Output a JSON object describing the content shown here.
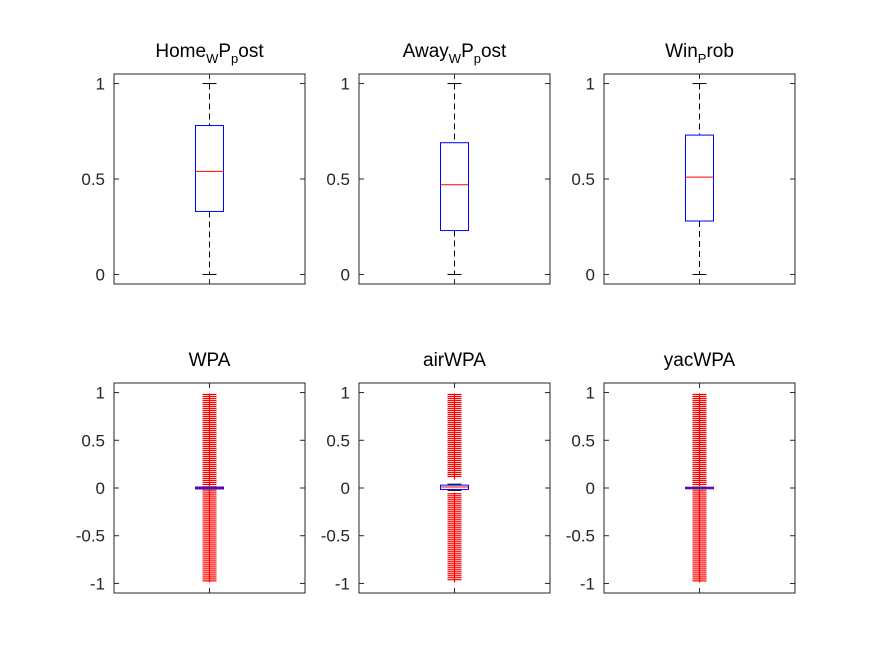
{
  "chart_data": [
    {
      "type": "box",
      "title_parts": [
        {
          "text": "Home",
          "sub": false
        },
        {
          "text": "W",
          "sub": true
        },
        {
          "text": "P",
          "sub": false
        },
        {
          "text": "p",
          "sub": true
        },
        {
          "text": "ost",
          "sub": false
        }
      ],
      "ylim": [
        -0.05,
        1.05
      ],
      "yticks": [
        0,
        0.5,
        1
      ],
      "ytick_labels": [
        "0",
        "0.5",
        "1"
      ],
      "box": {
        "min": 0,
        "q1": 0.33,
        "median": 0.54,
        "q3": 0.78,
        "max": 1
      },
      "outliers_low": [],
      "outliers_high": []
    },
    {
      "type": "box",
      "title_parts": [
        {
          "text": "Away",
          "sub": false
        },
        {
          "text": "W",
          "sub": true
        },
        {
          "text": "P",
          "sub": false
        },
        {
          "text": "p",
          "sub": true
        },
        {
          "text": "ost",
          "sub": false
        }
      ],
      "ylim": [
        -0.05,
        1.05
      ],
      "yticks": [
        0,
        0.5,
        1
      ],
      "ytick_labels": [
        "0",
        "0.5",
        "1"
      ],
      "box": {
        "min": 0,
        "q1": 0.23,
        "median": 0.47,
        "q3": 0.69,
        "max": 1
      },
      "outliers_low": [],
      "outliers_high": []
    },
    {
      "type": "box",
      "title_parts": [
        {
          "text": "Win",
          "sub": false
        },
        {
          "text": "P",
          "sub": true
        },
        {
          "text": "rob",
          "sub": false
        }
      ],
      "ylim": [
        -0.05,
        1.05
      ],
      "yticks": [
        0,
        0.5,
        1
      ],
      "ytick_labels": [
        "0",
        "0.5",
        "1"
      ],
      "box": {
        "min": 0,
        "q1": 0.28,
        "median": 0.51,
        "q3": 0.73,
        "max": 1
      },
      "outliers_low": [],
      "outliers_high": []
    },
    {
      "type": "box",
      "title_parts": [
        {
          "text": "WPA",
          "sub": false
        }
      ],
      "ylim": [
        -1.1,
        1.1
      ],
      "yticks": [
        -1,
        -0.5,
        0,
        0.5,
        1
      ],
      "ytick_labels": [
        "-1",
        "-0.5",
        "0",
        "0.5",
        "1"
      ],
      "box": {
        "min": -0.012,
        "q1": -0.01,
        "median": 0,
        "q3": 0.01,
        "max": 0.012
      },
      "outliers_low": [
        [
          -0.98,
          -0.03
        ]
      ],
      "outliers_high": [
        [
          0.03,
          0.98
        ]
      ]
    },
    {
      "type": "box",
      "title_parts": [
        {
          "text": "airWPA",
          "sub": false
        }
      ],
      "ylim": [
        -1.1,
        1.1
      ],
      "yticks": [
        -1,
        -0.5,
        0,
        0.5,
        1
      ],
      "ytick_labels": [
        "-1",
        "-0.5",
        "0",
        "0.5",
        "1"
      ],
      "box": {
        "min": -0.025,
        "q1": -0.015,
        "median": 0.01,
        "q3": 0.03,
        "max": 0.04
      },
      "outliers_low": [
        [
          -0.98,
          -0.06
        ]
      ],
      "outliers_high": [
        [
          0.1,
          0.98
        ]
      ]
    },
    {
      "type": "box",
      "title_parts": [
        {
          "text": "yacWPA",
          "sub": false
        }
      ],
      "ylim": [
        -1.1,
        1.1
      ],
      "yticks": [
        -1,
        -0.5,
        0,
        0.5,
        1
      ],
      "ytick_labels": [
        "-1",
        "-0.5",
        "0",
        "0.5",
        "1"
      ],
      "box": {
        "min": -0.01,
        "q1": -0.008,
        "median": 0,
        "q3": 0.008,
        "max": 0.01
      },
      "outliers_low": [
        [
          -0.98,
          -0.03
        ]
      ],
      "outliers_high": [
        [
          0.03,
          0.98
        ]
      ]
    }
  ]
}
